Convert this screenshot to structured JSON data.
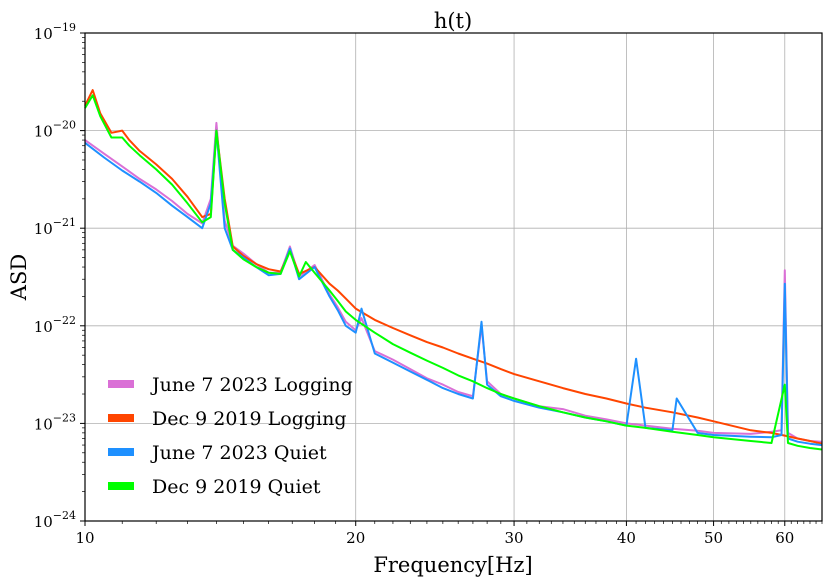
{
  "chart_data": {
    "type": "line",
    "title": "h(t)",
    "xlabel": "Frequency[Hz]",
    "ylabel": "ASD",
    "x_scale": "log",
    "y_scale": "log",
    "xlim": [
      10,
      66
    ],
    "ylim": [
      1e-24,
      1e-19
    ],
    "x_ticks": [
      10,
      20,
      30,
      40,
      50,
      60
    ],
    "x_tick_labels": [
      "10",
      "20",
      "30",
      "40",
      "50",
      "60"
    ],
    "y_ticks": [
      1e-24,
      1e-23,
      1e-22,
      1e-21,
      1e-20,
      1e-19
    ],
    "y_tick_labels": [
      {
        "base": "10",
        "exp": "−24"
      },
      {
        "base": "10",
        "exp": "−23"
      },
      {
        "base": "10",
        "exp": "−22"
      },
      {
        "base": "10",
        "exp": "−21"
      },
      {
        "base": "10",
        "exp": "−20"
      },
      {
        "base": "10",
        "exp": "−19"
      }
    ],
    "grid": true,
    "legend_position": "lower-left",
    "series": [
      {
        "name": "June 7 2023 Logging",
        "color": "#da70d6",
        "x": [
          10,
          10.5,
          11,
          11.5,
          12,
          12.5,
          13,
          13.5,
          13.8,
          14,
          14.3,
          14.6,
          15,
          15.5,
          16,
          16.5,
          16.9,
          17.3,
          18,
          18.7,
          19.1,
          19.5,
          20,
          20.3,
          21,
          22,
          23,
          24,
          25,
          26,
          27,
          27.6,
          28,
          29,
          30,
          32,
          34,
          36,
          38,
          40,
          42,
          45,
          48,
          50,
          55,
          58,
          59.5,
          60,
          60.5,
          62,
          64,
          66
        ],
        "y": [
          8e-21,
          5.8e-21,
          4.3e-21,
          3.2e-21,
          2.5e-21,
          1.9e-21,
          1.4e-21,
          1.12e-21,
          2e-21,
          1.2e-20,
          1.2e-21,
          6.6e-22,
          5.5e-22,
          4.3e-22,
          3.5e-22,
          3.5e-22,
          6.5e-22,
          3.2e-22,
          4.2e-22,
          2.1e-22,
          1.55e-22,
          1.1e-22,
          9e-23,
          1.2e-22,
          5.5e-23,
          4.5e-23,
          3.6e-23,
          2.9e-23,
          2.5e-23,
          2.1e-23,
          1.9e-23,
          1e-22,
          2.7e-23,
          2e-23,
          1.8e-23,
          1.5e-23,
          1.4e-23,
          1.2e-23,
          1.1e-23,
          1e-23,
          9.5e-24,
          8.8e-24,
          8.4e-24,
          8e-24,
          7.8e-24,
          8.2e-24,
          8.5e-24,
          3.7e-22,
          8e-24,
          7e-24,
          6.6e-24,
          6.5e-24
        ]
      },
      {
        "name": "Dec 9 2019 Logging",
        "color": "#ff4500",
        "x": [
          10,
          10.2,
          10.4,
          10.7,
          11,
          11.2,
          11.5,
          12,
          12.5,
          13,
          13.5,
          13.8,
          14,
          14.3,
          14.6,
          15,
          15.5,
          16,
          16.5,
          16.9,
          17.3,
          18,
          18.7,
          19.1,
          19.5,
          20,
          21,
          22,
          23,
          24,
          25,
          26,
          27,
          28,
          29,
          30,
          32,
          34,
          36,
          38,
          40,
          42,
          45,
          48,
          50,
          55,
          58,
          60,
          62,
          64,
          66
        ],
        "y": [
          1.8e-20,
          2.6e-20,
          1.5e-20,
          9.5e-21,
          1e-20,
          8e-21,
          6.2e-21,
          4.5e-21,
          3.2e-21,
          2.1e-21,
          1.3e-21,
          1.4e-21,
          1e-20,
          2e-21,
          6.5e-22,
          5.2e-22,
          4.3e-22,
          3.8e-22,
          3.6e-22,
          6e-22,
          3.4e-22,
          4e-22,
          2.7e-22,
          2.3e-22,
          1.9e-22,
          1.5e-22,
          1.15e-22,
          9.5e-23,
          8e-23,
          6.8e-23,
          6e-23,
          5.2e-23,
          4.6e-23,
          4.1e-23,
          3.6e-23,
          3.2e-23,
          2.7e-23,
          2.3e-23,
          2e-23,
          1.8e-23,
          1.6e-23,
          1.45e-23,
          1.3e-23,
          1.15e-23,
          1.05e-23,
          8.5e-24,
          8e-24,
          7.5e-24,
          7e-24,
          6.6e-24,
          6.2e-24
        ]
      },
      {
        "name": "June 7 2023 Quiet",
        "color": "#1e90ff",
        "x": [
          10,
          10.5,
          11,
          11.5,
          12,
          12.5,
          13,
          13.5,
          13.8,
          14,
          14.3,
          14.6,
          15,
          15.5,
          16,
          16.5,
          16.9,
          17.3,
          18,
          18.7,
          19.1,
          19.5,
          20,
          20.3,
          21,
          22,
          23,
          24,
          25,
          26,
          27,
          27.6,
          28,
          29,
          30,
          32,
          34,
          36,
          38,
          40,
          41,
          42,
          45,
          45.5,
          48,
          50,
          55,
          58,
          59.5,
          60,
          60.5,
          62,
          64,
          66
        ],
        "y": [
          7.5e-21,
          5.3e-21,
          3.9e-21,
          3e-21,
          2.3e-21,
          1.7e-21,
          1.3e-21,
          1e-21,
          1.8e-21,
          1e-20,
          1e-21,
          6e-22,
          5e-22,
          4e-22,
          3.3e-22,
          3.4e-22,
          6.2e-22,
          3e-22,
          4e-22,
          2e-22,
          1.45e-22,
          1e-22,
          8.5e-23,
          1.5e-22,
          5.2e-23,
          4.2e-23,
          3.4e-23,
          2.8e-23,
          2.3e-23,
          2e-23,
          1.8e-23,
          1.1e-22,
          2.5e-23,
          1.9e-23,
          1.7e-23,
          1.45e-23,
          1.3e-23,
          1.15e-23,
          1.05e-23,
          9.5e-24,
          4.6e-23,
          9e-24,
          8.5e-24,
          1.8e-23,
          8e-24,
          7.6e-24,
          7.3e-24,
          7.2e-24,
          7.6e-24,
          2.7e-22,
          7e-24,
          6.5e-24,
          6.2e-24,
          6e-24
        ]
      },
      {
        "name": "Dec 9 2019 Quiet",
        "color": "#00ff00",
        "x": [
          10,
          10.2,
          10.4,
          10.7,
          11,
          11.2,
          11.5,
          12,
          12.5,
          13,
          13.5,
          13.8,
          14,
          14.3,
          14.6,
          15,
          15.5,
          16,
          16.5,
          16.9,
          17.3,
          17.6,
          18,
          18.7,
          19.1,
          19.5,
          20,
          21,
          22,
          23,
          24,
          25,
          26,
          27,
          28,
          29,
          30,
          32,
          34,
          36,
          38,
          40,
          42,
          45,
          48,
          50,
          55,
          58,
          60,
          60.5,
          62,
          64,
          66
        ],
        "y": [
          1.7e-20,
          2.3e-20,
          1.4e-20,
          8.5e-21,
          8.5e-21,
          7e-21,
          5.6e-21,
          4e-21,
          2.8e-21,
          1.8e-21,
          1.15e-21,
          1.3e-21,
          1e-20,
          1.8e-21,
          6e-22,
          4.8e-22,
          4e-22,
          3.5e-22,
          3.4e-22,
          5.8e-22,
          3.2e-22,
          4.5e-22,
          3.5e-22,
          2.3e-22,
          1.8e-22,
          1.4e-22,
          1.15e-22,
          8.5e-23,
          6.5e-23,
          5.3e-23,
          4.4e-23,
          3.7e-23,
          3.1e-23,
          2.7e-23,
          2.3e-23,
          2e-23,
          1.8e-23,
          1.5e-23,
          1.3e-23,
          1.15e-23,
          1.05e-23,
          9.5e-24,
          9e-24,
          8.2e-24,
          7.6e-24,
          7.2e-24,
          6.6e-24,
          6.3e-24,
          2.5e-23,
          6.3e-24,
          5.9e-24,
          5.6e-24,
          5.4e-24
        ]
      }
    ]
  }
}
